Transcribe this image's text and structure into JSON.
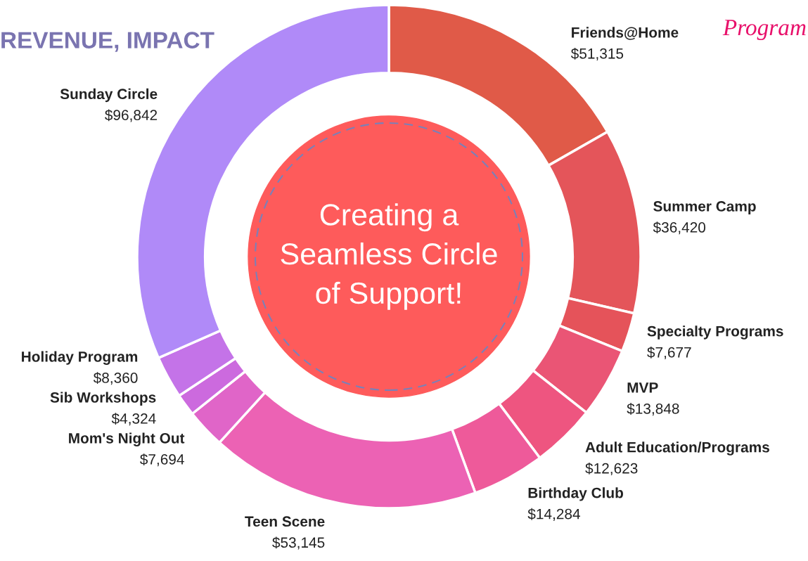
{
  "chart_data": {
    "type": "donut",
    "categories": [
      "Friends@Home",
      "Summer Camp",
      "Specialty Programs",
      "MVP",
      "Adult Education/Programs",
      "Birthday Club",
      "Teen Scene",
      "Mom's Night Out",
      "Sib Workshops",
      "Holiday Program",
      "Sunday Circle"
    ],
    "values": [
      51315,
      36420,
      7677,
      13848,
      12623,
      14284,
      53145,
      7694,
      4324,
      8360,
      96842
    ],
    "value_labels": [
      "$51,315",
      "$36,420",
      "$7,677",
      "$13,848",
      "$12,623",
      "$14,284",
      "$53,145",
      "$7,694",
      "$4,324",
      "$8,360",
      "$96,842"
    ],
    "colors": [
      "#e05a48",
      "#e4555a",
      "#e5535a",
      "#ea5575",
      "#ee5580",
      "#ee5a9a",
      "#ec62b4",
      "#e065c8",
      "#cc6ade",
      "#c473e8",
      "#b08af8"
    ],
    "annotations": [
      "REVENUE, IMPACT",
      "Program",
      "Creating a\nSeamless Circle\nof Support!"
    ]
  }
}
